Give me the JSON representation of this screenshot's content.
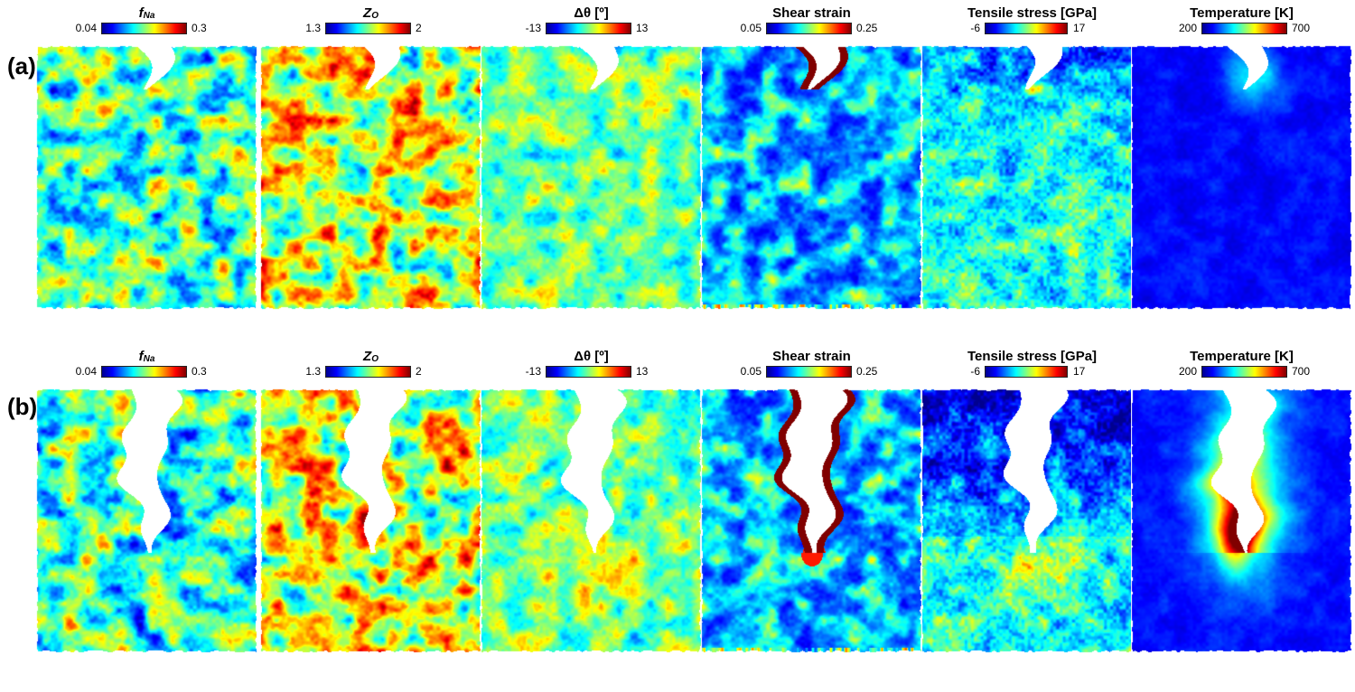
{
  "figure": {
    "rows": [
      {
        "label": "(a)",
        "panels": [
          {
            "title_symbol": "f",
            "title_sub": "Na",
            "title_text": "",
            "min": "0.04",
            "max": "0.3"
          },
          {
            "title_symbol": "Z",
            "title_sub": "O",
            "title_text": "",
            "min": "1.3",
            "max": "2"
          },
          {
            "title_symbol": "",
            "title_sub": "",
            "title_text": "Δθ [º]",
            "min": "-13",
            "max": "13"
          },
          {
            "title_symbol": "",
            "title_sub": "",
            "title_text": "Shear strain",
            "min": "0.05",
            "max": "0.25"
          },
          {
            "title_symbol": "",
            "title_sub": "",
            "title_text": "Tensile stress [GPa]",
            "min": "-6",
            "max": "17"
          },
          {
            "title_symbol": "",
            "title_sub": "",
            "title_text": "Temperature [K]",
            "min": "200",
            "max": "700"
          }
        ]
      },
      {
        "label": "(b)",
        "panels": [
          {
            "title_symbol": "f",
            "title_sub": "Na",
            "title_text": "",
            "min": "0.04",
            "max": "0.3"
          },
          {
            "title_symbol": "Z",
            "title_sub": "O",
            "title_text": "",
            "min": "1.3",
            "max": "2"
          },
          {
            "title_symbol": "",
            "title_sub": "",
            "title_text": "Δθ [º]",
            "min": "-13",
            "max": "13"
          },
          {
            "title_symbol": "",
            "title_sub": "",
            "title_text": "Shear strain",
            "min": "0.05",
            "max": "0.25"
          },
          {
            "title_symbol": "",
            "title_sub": "",
            "title_text": "Tensile stress [GPa]",
            "min": "-6",
            "max": "17"
          },
          {
            "title_symbol": "",
            "title_sub": "",
            "title_text": "Temperature [K]",
            "min": "200",
            "max": "700"
          }
        ]
      }
    ]
  },
  "colors": {
    "jet": [
      "#00008f",
      "#0000ff",
      "#0080ff",
      "#00ffff",
      "#80ff80",
      "#ffff00",
      "#ff8000",
      "#ff0000",
      "#800000"
    ],
    "crack": "#ffffff"
  }
}
